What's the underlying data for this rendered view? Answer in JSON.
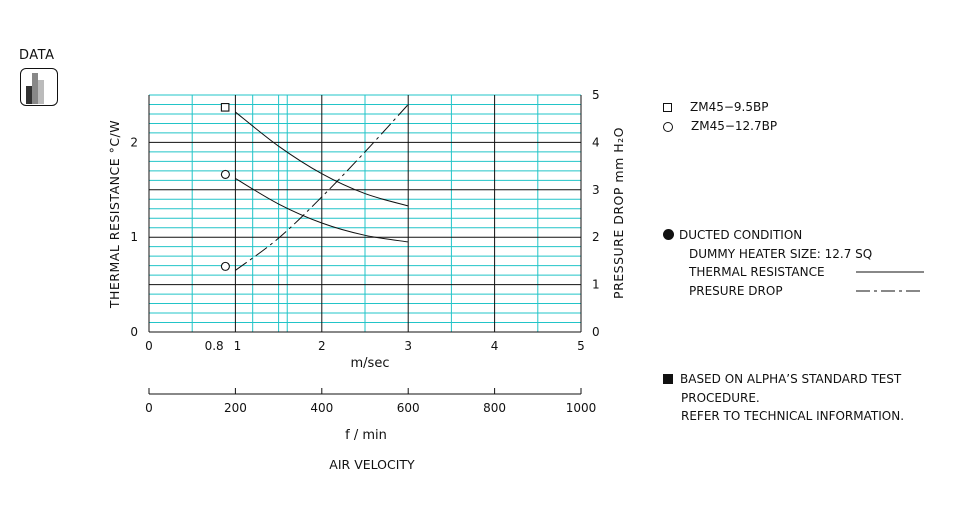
{
  "logo": {
    "label": "DATA",
    "icon": "data-bars-icon"
  },
  "legend": [
    {
      "marker": "square",
      "label": "ZM45−9.5BP"
    },
    {
      "marker": "circle",
      "label": "ZM45−12.7BP"
    }
  ],
  "conditions": {
    "title": "DUCTED CONDITION",
    "heater": "DUMMY HEATER SIZE:  12.7 SQ",
    "thermal_label": "THERMAL RESISTANCE",
    "pressure_label": "PRESURE DROP"
  },
  "note": {
    "line1": "BASED ON ALPHA’S STANDARD TEST",
    "line2": "PROCEDURE.",
    "line3": "REFER TO TECHNICAL INFORMATION."
  },
  "chart_data": {
    "type": "line",
    "xlabel": "m/sec",
    "xlabel_secondary": "f / min",
    "title_bottom": "AIR VELOCITY",
    "ylabel_left": "THERMAL  RESISTANCE    °C/W",
    "ylabel_right": "PRESSURE  DROP    mm H₂O",
    "xlim": [
      0,
      5
    ],
    "ylim_left": [
      0,
      2.5
    ],
    "ylim_right": [
      0,
      5
    ],
    "x_ticks": [
      "0",
      "0.8",
      "1",
      "2",
      "3",
      "4",
      "5"
    ],
    "x_ticks_secondary": [
      "0",
      "200",
      "400",
      "600",
      "800",
      "1000"
    ],
    "y_ticks_left": [
      "0",
      "1",
      "2"
    ],
    "y_ticks_right": [
      "0",
      "1",
      "2",
      "3",
      "4",
      "5"
    ],
    "grid": true,
    "series": [
      {
        "name": "ZM45−9.5BP",
        "marker": "square",
        "axis": "left",
        "style": "solid",
        "x": [
          1.0,
          1.5,
          2.0,
          2.5,
          3.0
        ],
        "y": [
          2.32,
          1.96,
          1.67,
          1.46,
          1.33
        ]
      },
      {
        "name": "ZM45−12.7BP",
        "marker": "circle",
        "axis": "left",
        "style": "solid",
        "x": [
          1.0,
          1.5,
          2.0,
          2.5,
          3.0
        ],
        "y": [
          1.62,
          1.35,
          1.15,
          1.02,
          0.95
        ]
      },
      {
        "name": "PRESURE DROP",
        "marker": "circle",
        "axis": "right",
        "style": "dashdot",
        "x": [
          1.0,
          1.5,
          2.0,
          2.5,
          3.0
        ],
        "y": [
          1.3,
          1.98,
          2.85,
          3.8,
          4.8
        ]
      }
    ]
  }
}
